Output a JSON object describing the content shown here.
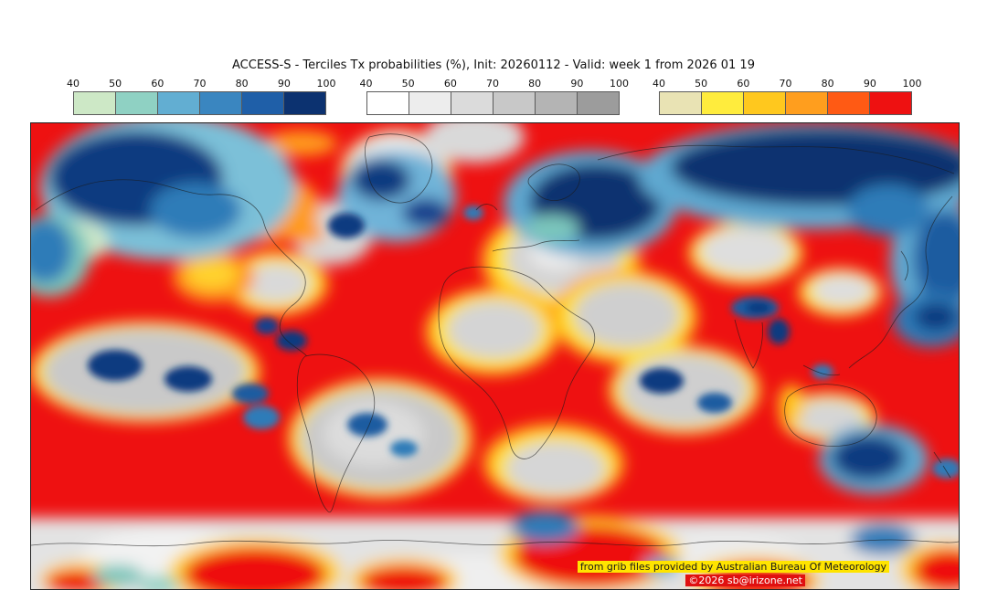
{
  "title": "ACCESS-S - Terciles Tx probabilities (%), Init: 20260112 - Valid: week 1 from 2026 01 19",
  "colorbars": [
    {
      "id": "cool",
      "ticks": [
        "40",
        "50",
        "60",
        "70",
        "80",
        "90",
        "100"
      ],
      "colors": [
        "#cde8c6",
        "#8fd1c3",
        "#62aed2",
        "#3a86c0",
        "#1f5fa8",
        "#0c3270"
      ]
    },
    {
      "id": "gray",
      "ticks": [
        "40",
        "50",
        "60",
        "70",
        "80",
        "90",
        "100"
      ],
      "colors": [
        "#ffffff",
        "#ededed",
        "#dbdbdb",
        "#c8c8c8",
        "#b4b4b4",
        "#9c9c9c"
      ]
    },
    {
      "id": "warm",
      "ticks": [
        "40",
        "50",
        "60",
        "70",
        "80",
        "90",
        "100"
      ],
      "colors": [
        "#e9e3b4",
        "#ffec3d",
        "#ffc81e",
        "#ff9e1e",
        "#ff5a14",
        "#ee1111"
      ]
    }
  ],
  "map": {
    "attribution": "from grib files provided by Australian Bureau Of Meteorology",
    "copyright": "©2026 sb@irizone.net",
    "attribution_bg": "#ffe400",
    "copyright_bg": "#e01010",
    "base_color": "#ee1111",
    "colors": {
      "red": "#ee1111",
      "orange": "#ff9a1e",
      "yellow": "#ffd22e",
      "gray": "#c9c9c9",
      "white": "#f2f2f2",
      "teal": "#7cc6bc",
      "mid_blue": "#2f7cb8",
      "navy": "#0c3270"
    }
  }
}
